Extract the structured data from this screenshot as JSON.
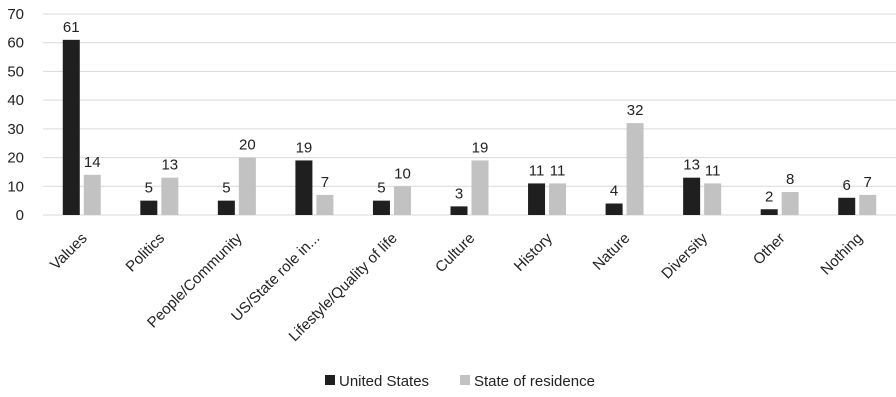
{
  "chart_data": {
    "type": "bar",
    "categories": [
      "Values",
      "Politics",
      "People/Community",
      "US/State role in...",
      "Lifestyle/Quality of life",
      "Culture",
      "History",
      "Nature",
      "Diversity",
      "Other",
      "Nothing"
    ],
    "series": [
      {
        "name": "United States",
        "color": "#1f1f1f",
        "values": [
          61,
          5,
          5,
          19,
          5,
          3,
          11,
          4,
          13,
          2,
          6
        ]
      },
      {
        "name": "State of residence",
        "color": "#c2c2c2",
        "values": [
          14,
          13,
          20,
          7,
          10,
          19,
          11,
          32,
          11,
          8,
          7
        ]
      }
    ],
    "ylim": [
      0,
      70
    ],
    "yticks": [
      0,
      10,
      20,
      30,
      40,
      50,
      60,
      70
    ],
    "grid": true,
    "legend_position": "bottom-center",
    "data_labels": true
  }
}
